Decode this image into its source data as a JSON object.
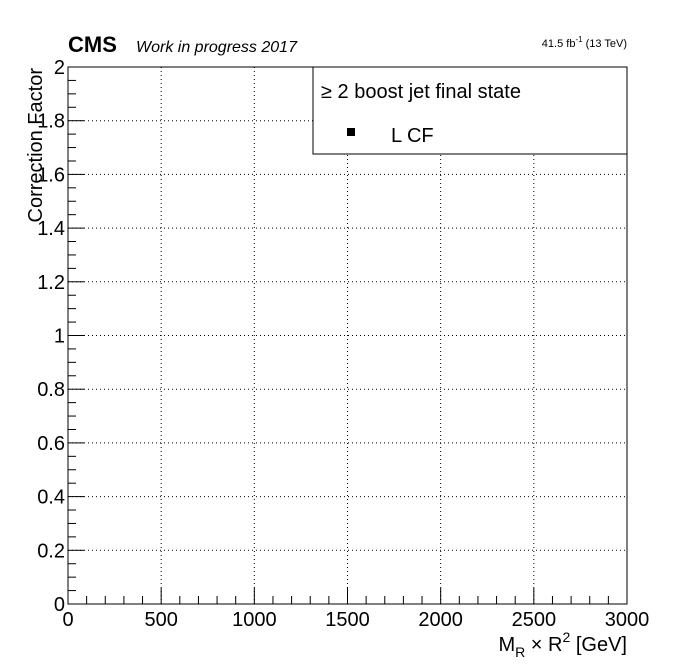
{
  "header": {
    "experiment": "CMS",
    "status": "Work in progress 2017",
    "lumi_value": "41.5 fb",
    "lumi_exponent": "-1",
    "energy": "(13 TeV)"
  },
  "legend": {
    "header": "≥ 2 boost jet final state",
    "entry_label": "L CF"
  },
  "axes": {
    "ylabel": "Correction Factor",
    "xlabel": {
      "main": "M",
      "main_sub": "R",
      "times": "×",
      "r": "R",
      "r_sup": "2",
      "unit": "[GeV]"
    }
  },
  "chart_data": {
    "type": "scatter",
    "title": "",
    "xlim": [
      0,
      3000
    ],
    "ylim": [
      0,
      2
    ],
    "x_ticks": [
      "0",
      "500",
      "1000",
      "1500",
      "2000",
      "2500",
      "3000"
    ],
    "y_ticks": [
      "0",
      "0.2",
      "0.4",
      "0.6",
      "0.8",
      "1",
      "1.2",
      "1.4",
      "1.6",
      "1.8",
      "2"
    ],
    "grid": true,
    "grid_style": "dotted",
    "legend_position": "top-right",
    "series": [
      {
        "name": "L CF",
        "marker": "square",
        "color": "#000000",
        "x": [],
        "y": []
      }
    ]
  }
}
